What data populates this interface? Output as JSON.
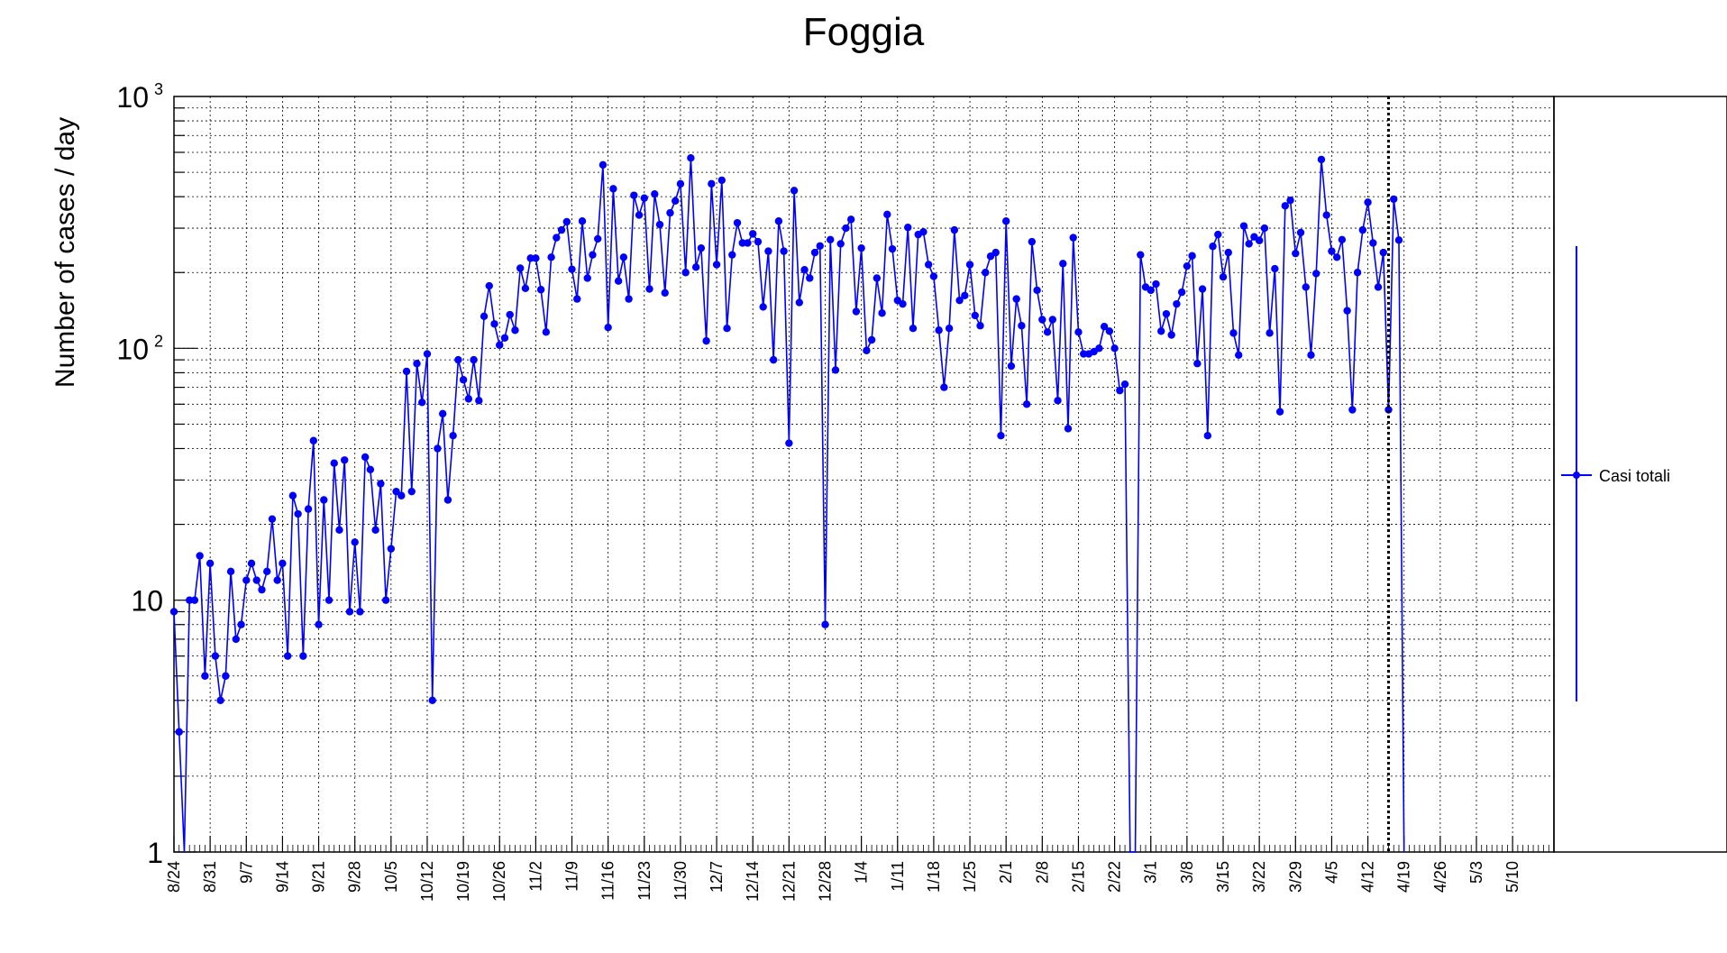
{
  "chart_data": {
    "type": "line",
    "title": "Foggia",
    "ylabel": "Number of cases / day",
    "xlabel": "",
    "yscale": "log",
    "ylim": [
      1,
      1000
    ],
    "y_tick_labels": [
      {
        "value": 1,
        "label": "1"
      },
      {
        "value": 10,
        "label": "10"
      },
      {
        "value": 100,
        "label": "10",
        "sup": "2"
      },
      {
        "value": 1000,
        "label": "10",
        "sup": "3"
      }
    ],
    "xlim": [
      "2020-08-24",
      "2021-05-18"
    ],
    "x_tick_labels": [
      "8/24",
      "8/31",
      "9/7",
      "9/14",
      "9/21",
      "9/28",
      "10/5",
      "10/12",
      "10/19",
      "10/26",
      "11/2",
      "11/9",
      "11/16",
      "11/23",
      "11/30",
      "12/7",
      "12/14",
      "12/21",
      "12/28",
      "1/4",
      "1/11",
      "1/18",
      "1/25",
      "2/1",
      "2/8",
      "2/15",
      "2/22",
      "3/1",
      "3/8",
      "3/15",
      "3/22",
      "3/29",
      "4/5",
      "4/12",
      "4/19",
      "4/26",
      "5/3",
      "5/10"
    ],
    "grid": true,
    "vertical_marker_date": "2021-04-16",
    "legend_position": "right",
    "color": "#0000ff",
    "series": [
      {
        "name": "Casi totali",
        "start_date": "2020-08-24",
        "values": [
          9,
          3,
          1,
          10,
          10,
          15,
          5,
          14,
          6,
          4,
          5,
          13,
          7,
          8,
          12,
          14,
          12,
          11,
          13,
          21,
          12,
          14,
          6,
          26,
          22,
          6,
          23,
          43,
          8,
          25,
          10,
          35,
          19,
          36,
          9,
          17,
          9,
          37,
          33,
          19,
          29,
          10,
          16,
          27,
          26,
          81,
          27,
          87,
          61,
          95,
          4,
          40,
          55,
          25,
          45,
          90,
          75,
          63,
          90,
          62,
          134,
          177,
          125,
          103,
          110,
          136,
          118,
          208,
          173,
          228,
          228,
          171,
          116,
          230,
          275,
          295,
          318,
          206,
          157,
          320,
          190,
          235,
          272,
          535,
          121,
          430,
          185,
          230,
          157,
          405,
          338,
          395,
          172,
          410,
          310,
          166,
          345,
          385,
          450,
          200,
          570,
          210,
          250,
          107,
          450,
          215,
          465,
          120,
          235,
          315,
          262,
          262,
          285,
          265,
          146,
          243,
          90,
          320,
          243,
          42,
          423,
          152,
          205,
          190,
          240,
          255,
          8,
          270,
          82,
          260,
          300,
          325,
          140,
          250,
          98,
          108,
          190,
          138,
          340,
          248,
          155,
          150,
          302,
          120,
          283,
          290,
          215,
          193,
          118,
          70,
          120,
          295,
          155,
          162,
          215,
          135,
          123,
          200,
          232,
          240,
          45,
          320,
          85,
          157,
          123,
          60,
          265,
          170,
          130,
          116,
          130,
          62,
          217,
          48,
          275,
          116,
          95,
          95,
          97,
          100,
          122,
          117,
          100,
          68,
          72,
          1,
          1,
          235,
          175,
          170,
          180,
          117,
          137,
          113,
          150,
          167,
          212,
          233,
          87,
          172,
          45,
          254,
          283,
          192,
          240,
          115,
          94,
          306,
          260,
          277,
          268,
          300,
          115,
          207,
          56,
          368,
          387,
          238,
          288,
          175,
          94,
          198,
          562,
          338,
          243,
          230,
          270,
          141,
          57,
          200,
          295,
          380,
          262,
          175,
          240,
          57,
          391,
          269,
          1
        ]
      }
    ]
  }
}
